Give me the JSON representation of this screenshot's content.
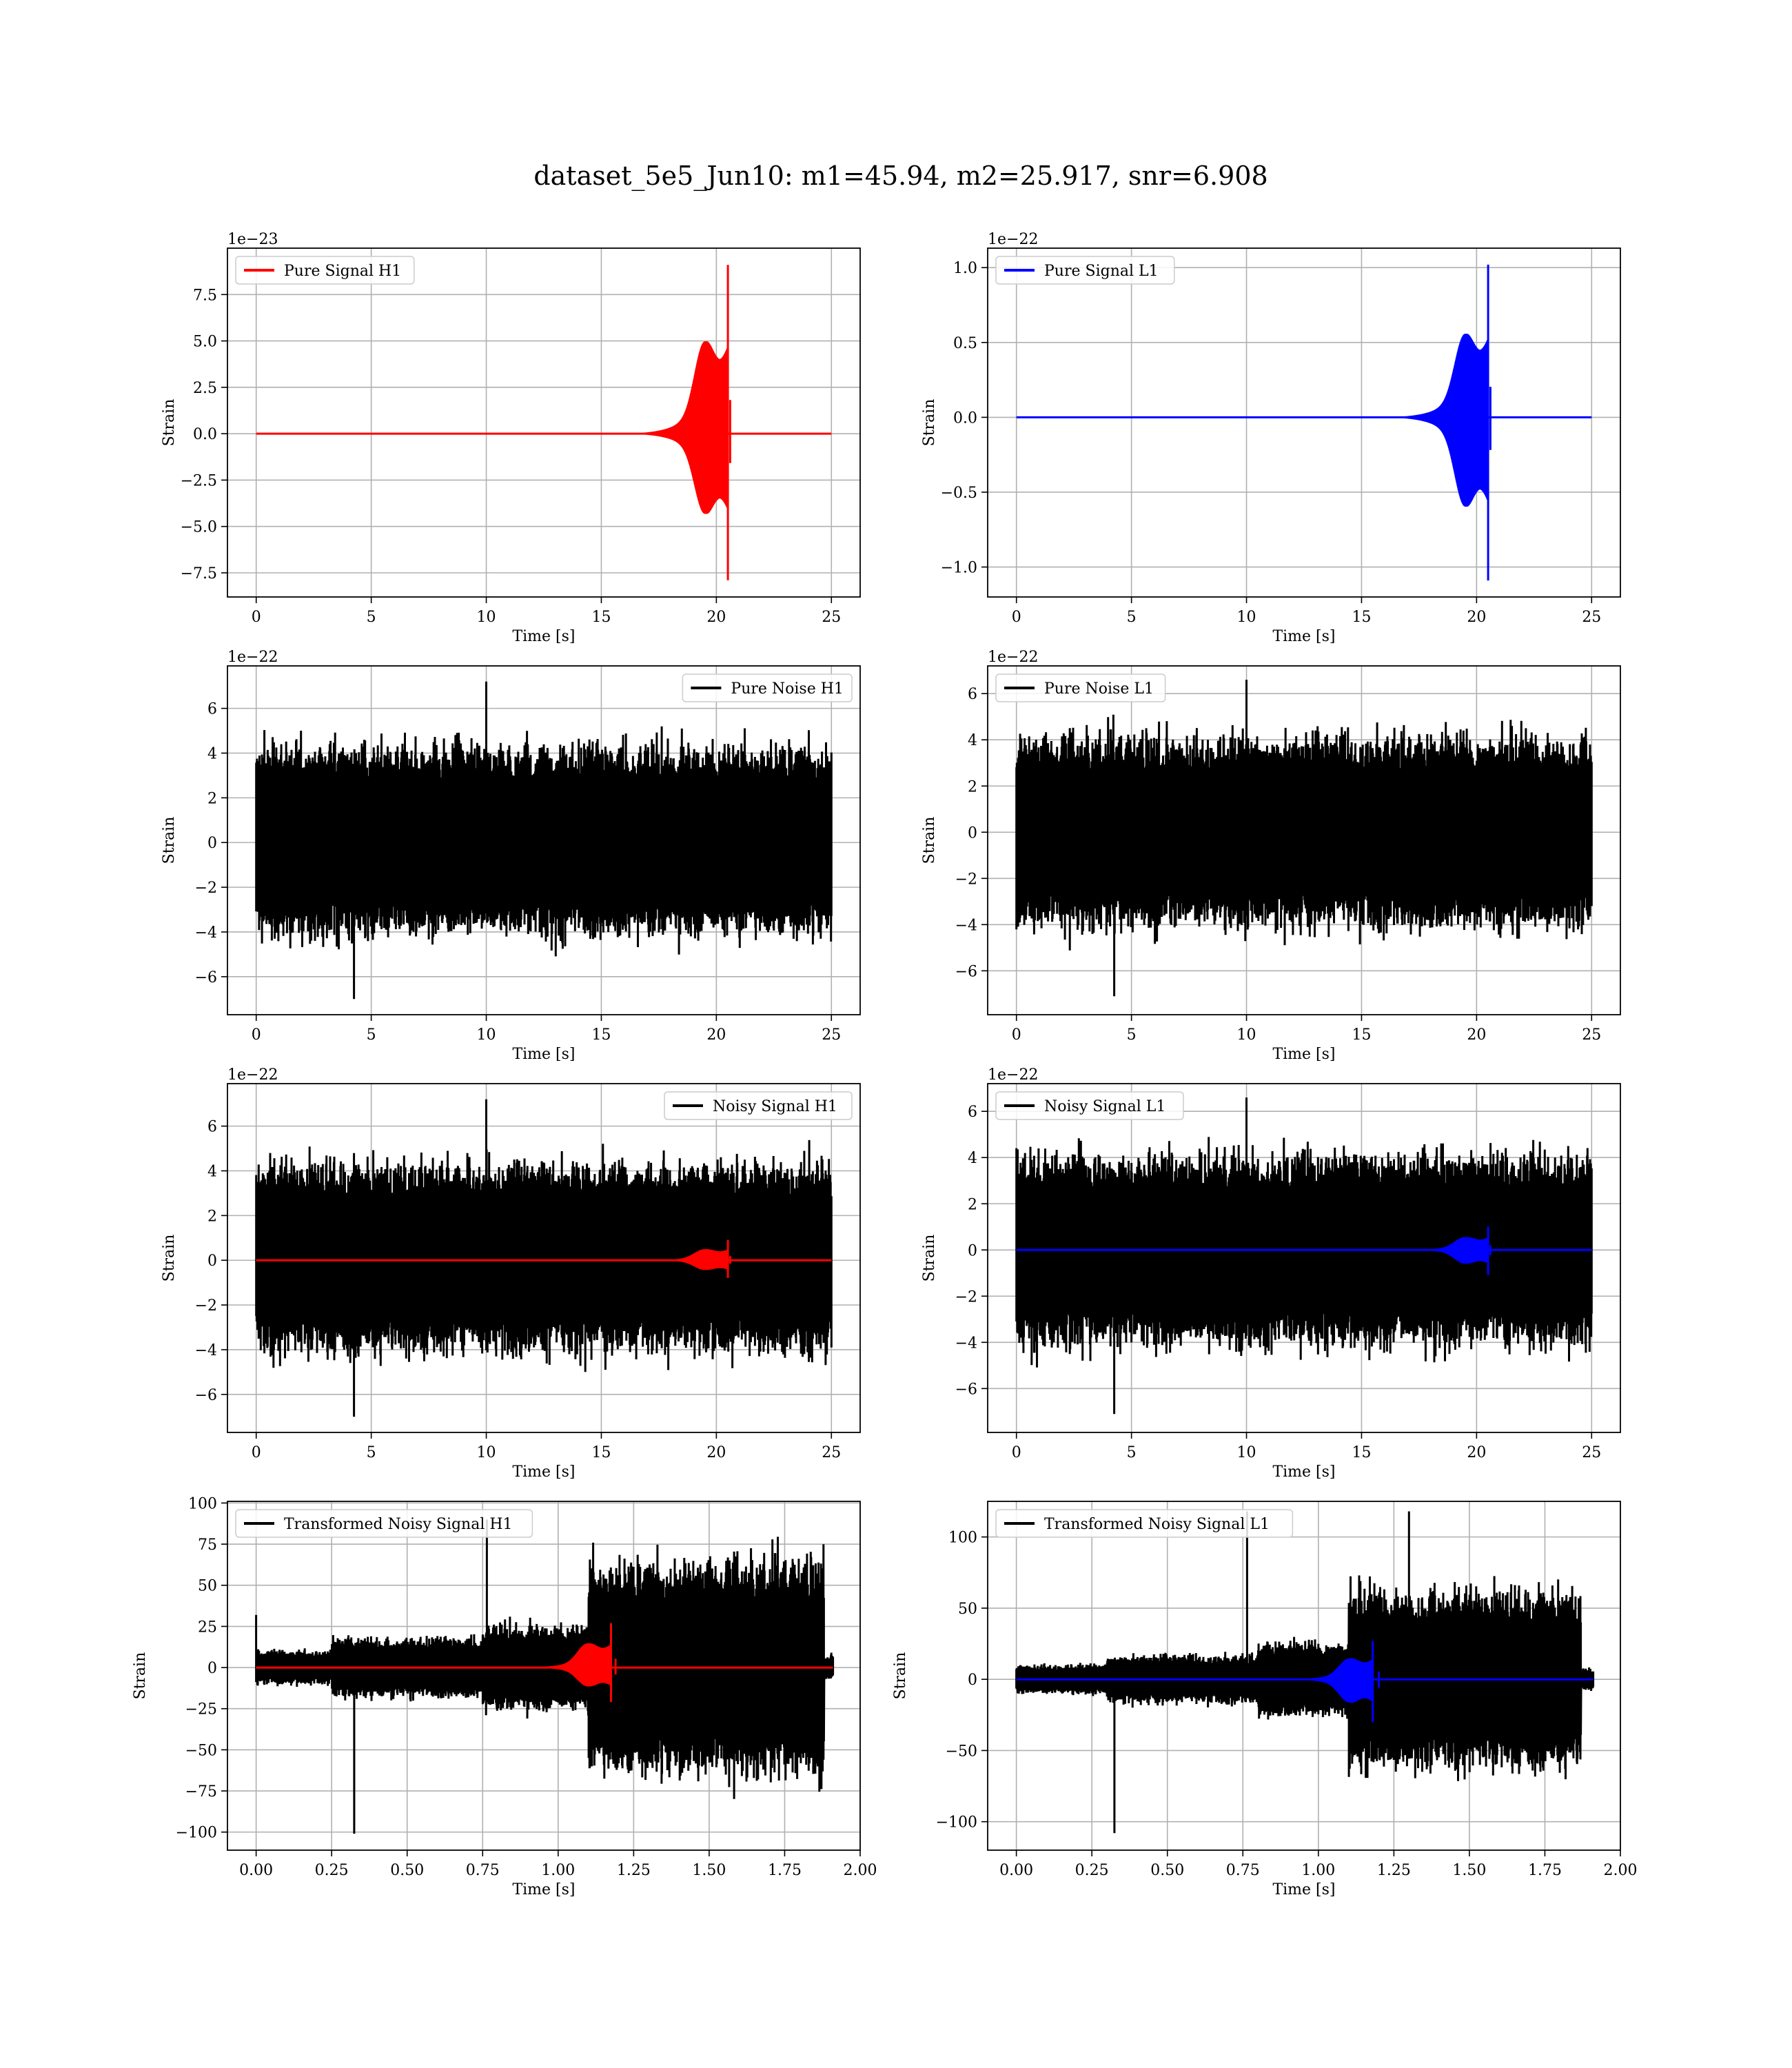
{
  "figure": {
    "title": "dataset_5e5_Jun10: m1=45.94, m2=25.917, snr=6.908"
  },
  "colors": {
    "h1_signal": "#ff0000",
    "l1_signal": "#0000ff",
    "noise": "#000000",
    "grid": "#b0b0b0"
  },
  "chart_data": [
    {
      "type": "line",
      "legend": [
        "Pure Signal H1"
      ],
      "legend_loc": "upper-left",
      "xlabel": "Time [s]",
      "ylabel": "Strain",
      "offset_text": "1e−23",
      "xlim": [
        -1.25,
        26.25
      ],
      "ylim": [
        -8.8,
        10.0
      ],
      "xticks": [
        0,
        5,
        10,
        15,
        20,
        25
      ],
      "xtick_labels": [
        "0",
        "5",
        "10",
        "15",
        "20",
        "25"
      ],
      "yticks": [
        -7.5,
        -5.0,
        -2.5,
        0.0,
        2.5,
        5.0,
        7.5
      ],
      "ytick_labels": [
        "−7.5",
        "−5.0",
        "−2.5",
        "0.0",
        "2.5",
        "5.0",
        "7.5"
      ],
      "series": [
        {
          "role": "signal",
          "color": "#ff0000",
          "t_start": 0,
          "t_end": 25,
          "envelope": {
            "merger_time": 20.5,
            "peak_max": 9.1,
            "peak_min": -7.9,
            "ringdown_end": 20.6
          }
        }
      ],
      "grid": true
    },
    {
      "type": "line",
      "legend": [
        "Pure Signal L1"
      ],
      "legend_loc": "upper-left",
      "xlabel": "Time [s]",
      "ylabel": "Strain",
      "offset_text": "1e−22",
      "xlim": [
        -1.25,
        26.25
      ],
      "ylim": [
        -1.2,
        1.13
      ],
      "xticks": [
        0,
        5,
        10,
        15,
        20,
        25
      ],
      "xtick_labels": [
        "0",
        "5",
        "10",
        "15",
        "20",
        "25"
      ],
      "yticks": [
        -1.0,
        -0.5,
        0.0,
        0.5,
        1.0
      ],
      "ytick_labels": [
        "−1.0",
        "−0.5",
        "0.0",
        "0.5",
        "1.0"
      ],
      "series": [
        {
          "role": "signal",
          "color": "#0000ff",
          "t_start": 0,
          "t_end": 25,
          "envelope": {
            "merger_time": 20.5,
            "peak_max": 1.02,
            "peak_min": -1.09,
            "ringdown_end": 20.6
          }
        }
      ],
      "grid": true
    },
    {
      "type": "line",
      "legend": [
        "Pure Noise H1"
      ],
      "legend_loc": "upper-right",
      "xlabel": "Time [s]",
      "ylabel": "Strain",
      "offset_text": "1e−22",
      "xlim": [
        -1.25,
        26.25
      ],
      "ylim": [
        -7.7,
        7.9
      ],
      "xticks": [
        0,
        5,
        10,
        15,
        20,
        25
      ],
      "xtick_labels": [
        "0",
        "5",
        "10",
        "15",
        "20",
        "25"
      ],
      "yticks": [
        -6,
        -4,
        -2,
        0,
        2,
        4,
        6
      ],
      "ytick_labels": [
        "−6",
        "−4",
        "−2",
        "0",
        "2",
        "4",
        "6"
      ],
      "series": [
        {
          "role": "noise",
          "color": "#000000",
          "t_start": 0,
          "t_end": 25,
          "band": [
            -3.2,
            3.4
          ],
          "max": 7.2,
          "min": -7.0
        }
      ],
      "grid": true
    },
    {
      "type": "line",
      "legend": [
        "Pure Noise L1"
      ],
      "legend_loc": "upper-left",
      "xlabel": "Time [s]",
      "ylabel": "Strain",
      "offset_text": "1e−22",
      "xlim": [
        -1.25,
        26.25
      ],
      "ylim": [
        -7.9,
        7.2
      ],
      "xticks": [
        0,
        5,
        10,
        15,
        20,
        25
      ],
      "xtick_labels": [
        "0",
        "5",
        "10",
        "15",
        "20",
        "25"
      ],
      "yticks": [
        -6,
        -4,
        -2,
        0,
        2,
        4,
        6
      ],
      "ytick_labels": [
        "−6",
        "−4",
        "−2",
        "0",
        "2",
        "4",
        "6"
      ],
      "series": [
        {
          "role": "noise",
          "color": "#000000",
          "t_start": 0,
          "t_end": 25,
          "band": [
            -3.2,
            3.2
          ],
          "max": 6.6,
          "min": -7.1
        }
      ],
      "grid": true
    },
    {
      "type": "line",
      "legend": [
        "Noisy Signal H1"
      ],
      "legend_loc": "upper-right",
      "xlabel": "Time [s]",
      "ylabel": "Strain",
      "offset_text": "1e−22",
      "xlim": [
        -1.25,
        26.25
      ],
      "ylim": [
        -7.7,
        7.9
      ],
      "xticks": [
        0,
        5,
        10,
        15,
        20,
        25
      ],
      "xtick_labels": [
        "0",
        "5",
        "10",
        "15",
        "20",
        "25"
      ],
      "yticks": [
        -6,
        -4,
        -2,
        0,
        2,
        4,
        6
      ],
      "ytick_labels": [
        "−6",
        "−4",
        "−2",
        "0",
        "2",
        "4",
        "6"
      ],
      "series": [
        {
          "role": "noise",
          "color": "#000000",
          "t_start": 0,
          "t_end": 25,
          "band": [
            -3.2,
            3.4
          ],
          "max": 7.2,
          "min": -7.0
        },
        {
          "role": "signal",
          "color": "#ff0000",
          "t_start": 0,
          "t_end": 25,
          "envelope": {
            "merger_time": 20.5,
            "peak_max": 0.91,
            "peak_min": -0.79,
            "ringdown_end": 20.6
          }
        }
      ],
      "grid": true
    },
    {
      "type": "line",
      "legend": [
        "Noisy Signal L1"
      ],
      "legend_loc": "upper-left",
      "xlabel": "Time [s]",
      "ylabel": "Strain",
      "offset_text": "1e−22",
      "xlim": [
        -1.25,
        26.25
      ],
      "ylim": [
        -7.9,
        7.2
      ],
      "xticks": [
        0,
        5,
        10,
        15,
        20,
        25
      ],
      "xtick_labels": [
        "0",
        "5",
        "10",
        "15",
        "20",
        "25"
      ],
      "yticks": [
        -6,
        -4,
        -2,
        0,
        2,
        4,
        6
      ],
      "ytick_labels": [
        "−6",
        "−4",
        "−2",
        "0",
        "2",
        "4",
        "6"
      ],
      "series": [
        {
          "role": "noise",
          "color": "#000000",
          "t_start": 0,
          "t_end": 25,
          "band": [
            -3.2,
            3.2
          ],
          "max": 6.6,
          "min": -7.1
        },
        {
          "role": "signal",
          "color": "#0000ff",
          "t_start": 0,
          "t_end": 25,
          "envelope": {
            "merger_time": 20.5,
            "peak_max": 1.02,
            "peak_min": -1.09,
            "ringdown_end": 20.6
          }
        }
      ],
      "grid": true
    },
    {
      "type": "line",
      "legend": [
        "Transformed Noisy Signal H1"
      ],
      "legend_loc": "upper-left",
      "xlabel": "Time [s]",
      "ylabel": "Strain",
      "offset_text": "",
      "xlim": [
        -0.095,
        2.0
      ],
      "ylim": [
        -111,
        101
      ],
      "xticks": [
        0.0,
        0.25,
        0.5,
        0.75,
        1.0,
        1.25,
        1.5,
        1.75,
        2.0
      ],
      "xtick_labels": [
        "0.00",
        "0.25",
        "0.50",
        "0.75",
        "1.00",
        "1.25",
        "1.50",
        "1.75",
        "2.00"
      ],
      "yticks": [
        -100,
        -75,
        -50,
        -25,
        0,
        25,
        50,
        75,
        100
      ],
      "ytick_labels": [
        "−100",
        "−75",
        "−50",
        "−25",
        "0",
        "25",
        "50",
        "75",
        "100"
      ],
      "series": [
        {
          "role": "transformed_noise",
          "color": "#000000",
          "t_start": 0,
          "t_end": 1.91,
          "segments": [
            [
              0,
              0.25,
              8
            ],
            [
              0.25,
              0.75,
              14
            ],
            [
              0.75,
              1.1,
              20
            ],
            [
              1.1,
              1.88,
              50
            ],
            [
              1.88,
              1.91,
              6
            ]
          ],
          "max": 90,
          "min": -101,
          "spike": [
            0.0,
            32
          ]
        },
        {
          "role": "signal",
          "color": "#ff0000",
          "t_start": 0,
          "t_end": 1.91,
          "envelope": {
            "merger_time": 1.175,
            "peak_max": 27,
            "peak_min": -21,
            "ringdown_end": 1.19
          }
        }
      ],
      "grid": true
    },
    {
      "type": "line",
      "legend": [
        "Transformed Noisy Signal L1"
      ],
      "legend_loc": "upper-left",
      "xlabel": "Time [s]",
      "ylabel": "Strain",
      "offset_text": "",
      "xlim": [
        -0.095,
        2.0
      ],
      "ylim": [
        -120,
        125
      ],
      "xticks": [
        0.0,
        0.25,
        0.5,
        0.75,
        1.0,
        1.25,
        1.5,
        1.75,
        2.0
      ],
      "xtick_labels": [
        "0.00",
        "0.25",
        "0.50",
        "0.75",
        "1.00",
        "1.25",
        "1.50",
        "1.75",
        "2.00"
      ],
      "yticks": [
        -100,
        -50,
        0,
        50,
        100
      ],
      "ytick_labels": [
        "−100",
        "−50",
        "0",
        "50",
        "100"
      ],
      "series": [
        {
          "role": "transformed_noise",
          "color": "#000000",
          "t_start": 0,
          "t_end": 1.91,
          "segments": [
            [
              0,
              0.3,
              8
            ],
            [
              0.3,
              0.8,
              13
            ],
            [
              0.8,
              1.1,
              20
            ],
            [
              1.1,
              1.87,
              48
            ],
            [
              1.87,
              1.91,
              6
            ]
          ],
          "max": 118,
          "min": -108,
          "spike": [
            1.3,
            118
          ]
        },
        {
          "role": "signal",
          "color": "#0000ff",
          "t_start": 0,
          "t_end": 1.91,
          "envelope": {
            "merger_time": 1.18,
            "peak_max": 27,
            "peak_min": -30,
            "ringdown_end": 1.2
          }
        }
      ],
      "grid": true
    }
  ]
}
